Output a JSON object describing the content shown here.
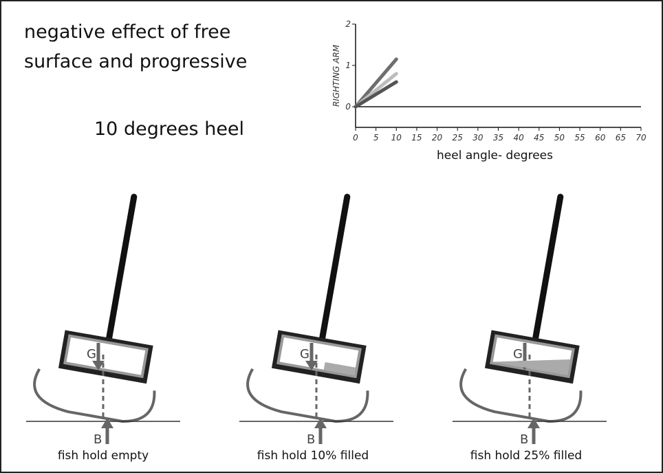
{
  "title_lines": [
    "negative effect of free",
    "surface and progressive"
  ],
  "subtitle": "10 degrees heel",
  "chart_data": {
    "type": "line",
    "ylabel": "RIGHTING ARM",
    "xlabel": "heel angle- degrees",
    "x": [
      0,
      10
    ],
    "series": [
      {
        "color": "#6e6e6e",
        "values": [
          0,
          1.15
        ]
      },
      {
        "color": "#bdbdbd",
        "values": [
          0,
          0.8
        ]
      },
      {
        "color": "#555555",
        "values": [
          0,
          0.6
        ]
      }
    ],
    "xlim": [
      0,
      70
    ],
    "ylim": [
      -0.5,
      2
    ],
    "xticks": [
      0,
      5,
      10,
      15,
      20,
      25,
      30,
      35,
      40,
      45,
      50,
      55,
      60,
      65,
      70
    ],
    "yticks": [
      0,
      1,
      2
    ]
  },
  "boats": [
    {
      "g_label": "G",
      "b_label": "B",
      "caption": "fish hold empty"
    },
    {
      "g_label": "G",
      "b_label": "B",
      "caption": "fish hold 10% filled"
    },
    {
      "g_label": "G",
      "b_label": "B",
      "caption": "fish hold 25% filled"
    }
  ]
}
